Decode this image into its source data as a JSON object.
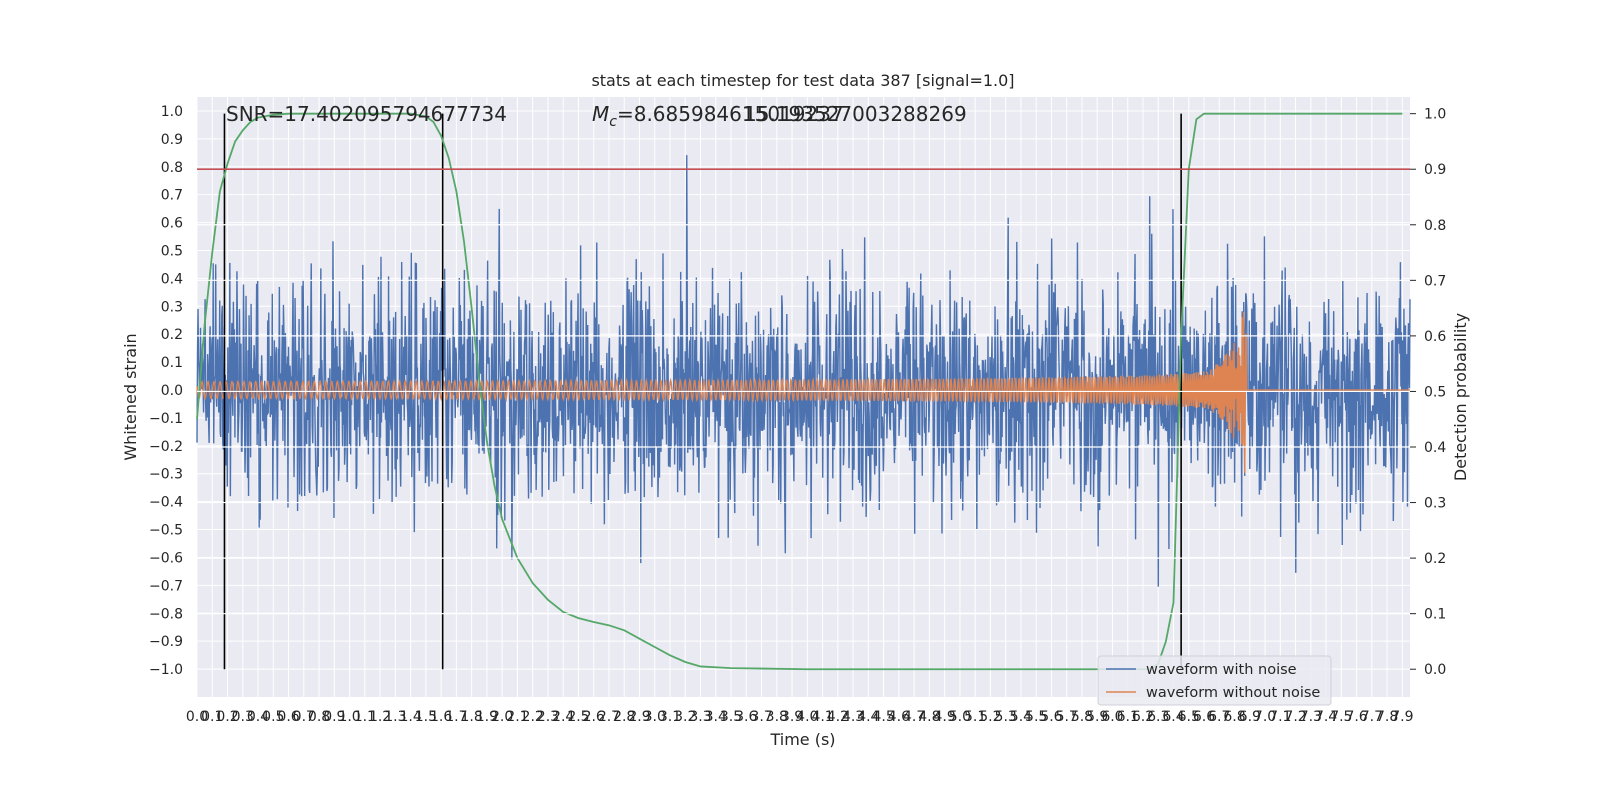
{
  "chart_data": {
    "type": "line",
    "title": "stats at each timestep for test data 387 [signal=1.0]",
    "xlabel": "Time (s)",
    "ylabel_left": "Whitened strain",
    "ylabel_right": "Detection probability",
    "xlim": [
      0.0,
      7.95
    ],
    "ylim_left": [
      -1.1,
      1.05
    ],
    "ylim_right": [
      -0.05,
      1.03
    ],
    "x_tick_step": 0.1,
    "x_tick_max": 7.9,
    "y_ticks_left": [
      "1.0",
      "0.9",
      "0.8",
      "0.7",
      "0.6",
      "0.5",
      "0.4",
      "0.3",
      "0.2",
      "0.1",
      "0.0",
      "-0.1",
      "-0.2",
      "-0.3",
      "-0.4",
      "-0.5",
      "-0.6",
      "-0.7",
      "-0.8",
      "-0.9",
      "-1.0"
    ],
    "y_ticks_right": [
      "1.0",
      "0.9",
      "0.8",
      "0.7",
      "0.6",
      "0.5",
      "0.4",
      "0.3",
      "0.2",
      "0.1",
      "0.0"
    ],
    "grid": true,
    "legend_position": "bottom-right",
    "annotations": {
      "snr": "SNR=17.402095794677734",
      "mc_symbol": "M",
      "mc_sub": "c",
      "mc_rest": "=8.685984615019237",
      "overlap": "15.193527003288269"
    },
    "threshold": {
      "y": 0.9,
      "color": "#c44e52"
    },
    "vertical_markers_x": [
      0.18,
      1.61,
      6.45
    ],
    "series": [
      {
        "name": "waveform with noise",
        "color": "#4c72b0",
        "axis": "left",
        "noise_std": 0.2,
        "amplitude_range": [
          -1.0,
          0.95
        ]
      },
      {
        "name": "waveform without noise",
        "color": "#dd8452",
        "axis": "left",
        "chirp_merger_time": 6.88,
        "chirp_peak_amplitude": 0.52,
        "chirp_start_amplitude": 0.03
      },
      {
        "color": "#55a868",
        "axis": "right",
        "x": [
          0.0,
          0.05,
          0.1,
          0.15,
          0.2,
          0.25,
          0.3,
          0.35,
          0.4,
          0.5,
          0.6,
          0.8,
          1.0,
          1.2,
          1.4,
          1.5,
          1.55,
          1.6,
          1.65,
          1.7,
          1.75,
          1.8,
          1.85,
          1.9,
          1.95,
          2.0,
          2.1,
          2.2,
          2.3,
          2.4,
          2.5,
          2.6,
          2.7,
          2.8,
          2.9,
          3.0,
          3.1,
          3.2,
          3.3,
          3.5,
          4.0,
          5.0,
          6.0,
          6.25,
          6.3,
          6.35,
          6.4,
          6.45,
          6.5,
          6.55,
          6.6,
          6.7,
          7.0,
          7.5,
          7.9
        ],
        "y": [
          0.45,
          0.62,
          0.75,
          0.86,
          0.91,
          0.95,
          0.97,
          0.985,
          0.993,
          0.998,
          1.0,
          1.0,
          1.0,
          1.0,
          1.0,
          0.995,
          0.985,
          0.96,
          0.92,
          0.86,
          0.77,
          0.65,
          0.52,
          0.41,
          0.33,
          0.27,
          0.2,
          0.155,
          0.125,
          0.103,
          0.092,
          0.085,
          0.079,
          0.07,
          0.055,
          0.04,
          0.025,
          0.013,
          0.005,
          0.002,
          0.0,
          0.0,
          0.0,
          0.0,
          0.01,
          0.05,
          0.12,
          0.6,
          0.9,
          0.99,
          1.0,
          1.0,
          1.0,
          1.0,
          1.0
        ]
      }
    ]
  }
}
